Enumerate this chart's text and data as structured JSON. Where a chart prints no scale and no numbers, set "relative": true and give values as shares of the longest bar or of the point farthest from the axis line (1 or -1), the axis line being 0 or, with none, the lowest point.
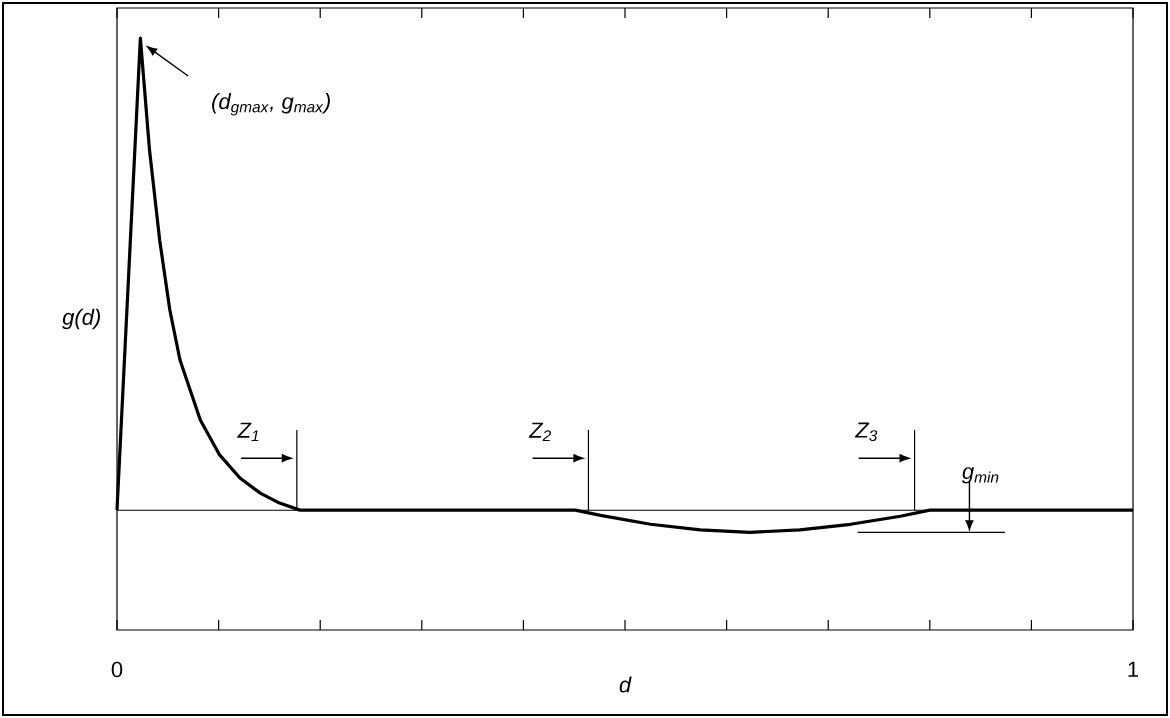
{
  "chart_data": {
    "type": "line",
    "relative": true,
    "color": "#000000",
    "xlabel": "d",
    "ylabel": "g(d)",
    "xlim": [
      0,
      1
    ],
    "xticks": [
      0,
      1
    ],
    "x": [
      0,
      0.023,
      0.032,
      0.042,
      0.052,
      0.062,
      0.082,
      0.101,
      0.121,
      0.141,
      0.16,
      0.18,
      0.451,
      0.476,
      0.525,
      0.574,
      0.623,
      0.672,
      0.722,
      0.771,
      0.8,
      1
    ],
    "values": [
      0,
      1,
      0.763,
      0.572,
      0.424,
      0.318,
      0.191,
      0.117,
      0.068,
      0.036,
      0.015,
      0,
      0,
      -0.011,
      -0.03,
      -0.042,
      -0.047,
      -0.042,
      -0.03,
      -0.013,
      0,
      0
    ],
    "annotations": [
      "(d$_{gmax}$, g$_{max}$)"
    ],
    "ref_lines": [
      {
        "axis": "x",
        "value": 0.177,
        "label": "Z$_{1}$"
      },
      {
        "axis": "x",
        "value": 0.464,
        "label": "Z$_{2}$"
      },
      {
        "axis": "x",
        "value": 0.785,
        "label": "Z$_{3}$"
      },
      {
        "axis": "y",
        "value": -0.047,
        "label": "g$_{min}$"
      }
    ]
  }
}
